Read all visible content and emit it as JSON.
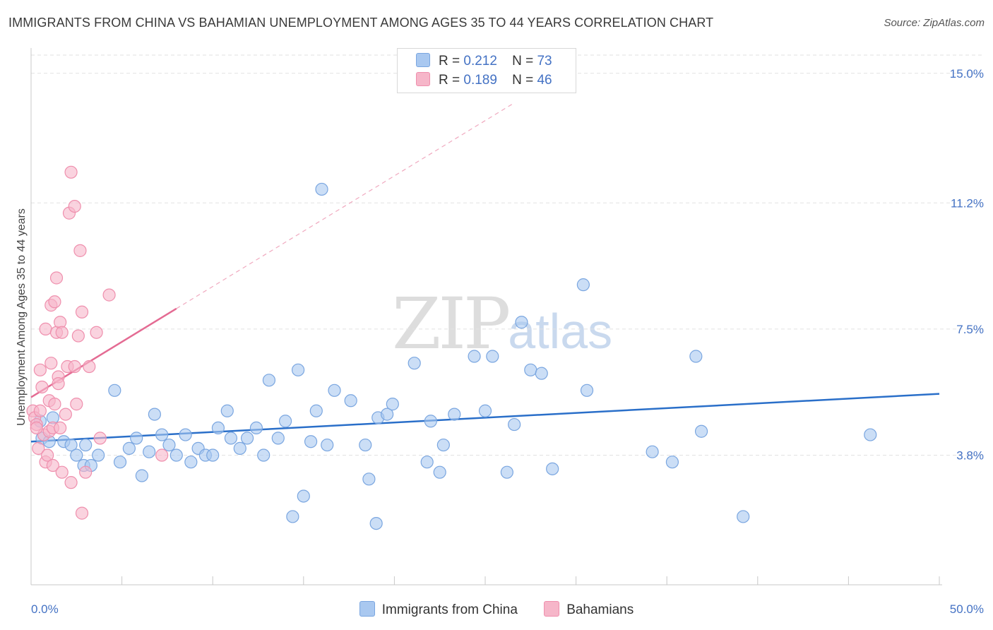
{
  "header": {
    "title": "IMMIGRANTS FROM CHINA VS BAHAMIAN UNEMPLOYMENT AMONG AGES 35 TO 44 YEARS CORRELATION CHART",
    "source": "Source: ZipAtlas.com"
  },
  "watermark": {
    "zip": "ZIP",
    "atlas": "atlas"
  },
  "legend": {
    "r_label": "R =",
    "n_label": "N =",
    "rows": [
      {
        "r": "0.212",
        "n": "73",
        "color": "#a9c8f0"
      },
      {
        "r": "0.189",
        "n": "46",
        "color": "#f6b6c9"
      }
    ]
  },
  "bottom_legend": [
    "Immigrants from China",
    "Bahamians"
  ],
  "chart_data": {
    "type": "scatter",
    "xlabel": "",
    "ylabel": "Unemployment Among Ages 35 to 44 years",
    "xlim": [
      0,
      50
    ],
    "ylim": [
      0,
      15.7
    ],
    "x_tick_labels": [
      "0.0%",
      "50.0%"
    ],
    "y_ticks": [
      3.8,
      7.5,
      11.2,
      15.0
    ],
    "y_tick_labels": [
      "3.8%",
      "7.5%",
      "11.2%",
      "15.0%"
    ],
    "grid": "horizontal dashed",
    "series": [
      {
        "name": "Immigrants from China",
        "color": "#a9c8f0",
        "stroke": "#7aa6e0",
        "trend": {
          "x": [
            0,
            50
          ],
          "y": [
            4.2,
            5.6
          ],
          "color": "#2a6fc9"
        },
        "points": [
          [
            0.5,
            4.8
          ],
          [
            0.6,
            4.3
          ],
          [
            1.0,
            4.2
          ],
          [
            1.2,
            4.9
          ],
          [
            1.8,
            4.2
          ],
          [
            2.2,
            4.1
          ],
          [
            2.5,
            3.8
          ],
          [
            2.9,
            3.5
          ],
          [
            3.0,
            4.1
          ],
          [
            3.3,
            3.5
          ],
          [
            3.7,
            3.8
          ],
          [
            4.6,
            5.7
          ],
          [
            4.9,
            3.6
          ],
          [
            5.4,
            4.0
          ],
          [
            5.8,
            4.3
          ],
          [
            6.1,
            3.2
          ],
          [
            6.5,
            3.9
          ],
          [
            6.8,
            5.0
          ],
          [
            7.2,
            4.4
          ],
          [
            7.6,
            4.1
          ],
          [
            8.0,
            3.8
          ],
          [
            8.5,
            4.4
          ],
          [
            8.8,
            3.6
          ],
          [
            9.2,
            4.0
          ],
          [
            9.6,
            3.8
          ],
          [
            10.0,
            3.8
          ],
          [
            10.3,
            4.6
          ],
          [
            10.8,
            5.1
          ],
          [
            11.0,
            4.3
          ],
          [
            11.5,
            4.0
          ],
          [
            11.9,
            4.3
          ],
          [
            12.4,
            4.6
          ],
          [
            12.8,
            3.8
          ],
          [
            13.1,
            6.0
          ],
          [
            13.6,
            4.3
          ],
          [
            14.0,
            4.8
          ],
          [
            14.4,
            2.0
          ],
          [
            14.7,
            6.3
          ],
          [
            15.0,
            2.6
          ],
          [
            15.4,
            4.2
          ],
          [
            15.7,
            5.1
          ],
          [
            16.0,
            11.6
          ],
          [
            16.3,
            4.1
          ],
          [
            16.7,
            5.7
          ],
          [
            17.6,
            5.4
          ],
          [
            18.4,
            4.1
          ],
          [
            18.6,
            3.1
          ],
          [
            19.0,
            1.8
          ],
          [
            19.1,
            4.9
          ],
          [
            19.6,
            5.0
          ],
          [
            19.9,
            5.3
          ],
          [
            21.1,
            6.5
          ],
          [
            21.8,
            3.6
          ],
          [
            22.0,
            4.8
          ],
          [
            22.5,
            3.3
          ],
          [
            22.7,
            4.1
          ],
          [
            23.3,
            5.0
          ],
          [
            24.4,
            6.7
          ],
          [
            25.0,
            5.1
          ],
          [
            25.4,
            6.7
          ],
          [
            26.2,
            3.3
          ],
          [
            26.6,
            4.7
          ],
          [
            27.0,
            7.7
          ],
          [
            27.5,
            6.3
          ],
          [
            28.1,
            6.2
          ],
          [
            28.7,
            3.4
          ],
          [
            30.4,
            8.8
          ],
          [
            30.6,
            5.7
          ],
          [
            34.2,
            3.9
          ],
          [
            35.3,
            3.6
          ],
          [
            36.6,
            6.7
          ],
          [
            36.9,
            4.5
          ],
          [
            39.2,
            2.0
          ],
          [
            46.2,
            4.4
          ]
        ]
      },
      {
        "name": "Bahamians",
        "color": "#f6b6c9",
        "stroke": "#ef8fad",
        "trend": {
          "x": [
            0,
            8
          ],
          "y": [
            5.5,
            8.1
          ],
          "color": "#e46b93",
          "dashed_extension_to": [
            26.5,
            14.1
          ]
        },
        "points": [
          [
            0.1,
            5.1
          ],
          [
            0.2,
            4.9
          ],
          [
            0.3,
            4.7
          ],
          [
            0.4,
            4.0
          ],
          [
            0.5,
            5.1
          ],
          [
            0.5,
            6.3
          ],
          [
            0.6,
            5.8
          ],
          [
            0.7,
            4.4
          ],
          [
            0.8,
            3.6
          ],
          [
            0.8,
            7.5
          ],
          [
            0.9,
            3.8
          ],
          [
            1.0,
            4.5
          ],
          [
            1.0,
            5.4
          ],
          [
            1.1,
            8.2
          ],
          [
            1.1,
            6.5
          ],
          [
            1.2,
            4.6
          ],
          [
            1.2,
            3.5
          ],
          [
            1.3,
            8.3
          ],
          [
            1.3,
            5.3
          ],
          [
            1.4,
            7.4
          ],
          [
            1.4,
            9.0
          ],
          [
            1.5,
            6.1
          ],
          [
            1.5,
            5.9
          ],
          [
            1.6,
            7.7
          ],
          [
            1.6,
            4.6
          ],
          [
            1.7,
            3.3
          ],
          [
            1.7,
            7.4
          ],
          [
            1.9,
            5.0
          ],
          [
            2.0,
            6.4
          ],
          [
            2.1,
            10.9
          ],
          [
            2.2,
            3.0
          ],
          [
            2.2,
            12.1
          ],
          [
            2.4,
            6.4
          ],
          [
            2.4,
            11.1
          ],
          [
            2.6,
            7.3
          ],
          [
            2.7,
            9.8
          ],
          [
            2.8,
            8.0
          ],
          [
            2.8,
            2.1
          ],
          [
            3.0,
            3.3
          ],
          [
            3.2,
            6.4
          ],
          [
            3.6,
            7.4
          ],
          [
            3.8,
            4.3
          ],
          [
            4.3,
            8.5
          ],
          [
            7.2,
            3.8
          ],
          [
            0.3,
            4.6
          ],
          [
            2.5,
            5.3
          ]
        ]
      }
    ]
  }
}
